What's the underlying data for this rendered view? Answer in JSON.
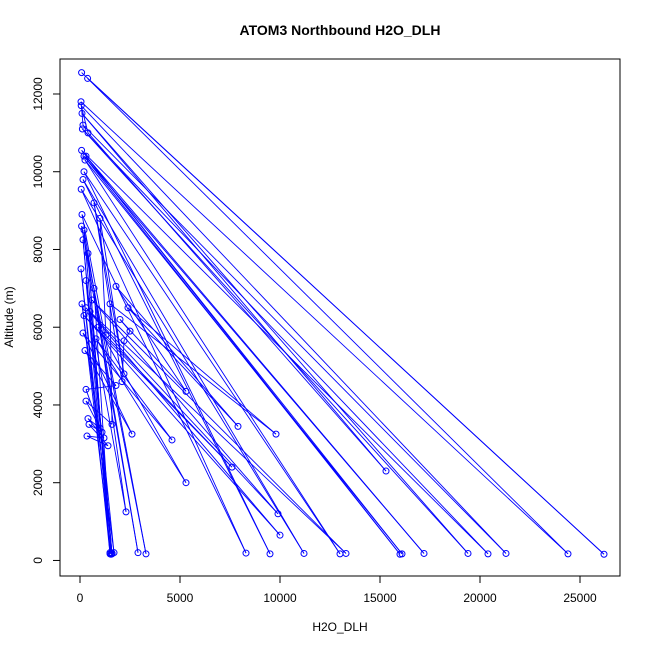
{
  "chart_data": {
    "type": "scatter",
    "title": "ATOM3 Northbound H2O_DLH",
    "xlabel": "H2O_DLH",
    "ylabel": "Altitude (m)",
    "xlim": [
      -1000,
      27000
    ],
    "ylim": [
      -400,
      12900
    ],
    "xticks": [
      0,
      5000,
      10000,
      15000,
      20000,
      25000
    ],
    "yticks": [
      0,
      2000,
      4000,
      6000,
      8000,
      10000,
      12000
    ],
    "grid": false,
    "legend": "none",
    "color": "#0000ff",
    "series": [
      {
        "points": [
          [
            80,
            12550
          ],
          [
            26200,
            160
          ],
          [
            380,
            12400
          ],
          [
            24400,
            170
          ],
          [
            50,
            11800
          ],
          [
            150,
            11200
          ],
          [
            21300,
            180
          ],
          [
            60,
            11700
          ],
          [
            400,
            11000
          ],
          [
            15300,
            2300
          ],
          [
            100,
            11500
          ],
          [
            19400,
            180
          ],
          [
            120,
            11100
          ],
          [
            20400,
            170
          ],
          [
            80,
            10550
          ],
          [
            16000,
            160
          ],
          [
            200,
            10400
          ],
          [
            17200,
            180
          ],
          [
            300,
            10400
          ],
          [
            16100,
            170
          ],
          [
            250,
            10300
          ],
          [
            13000,
            170
          ],
          [
            200,
            10000
          ],
          [
            9500,
            170
          ],
          [
            150,
            9800
          ],
          [
            11200,
            180
          ],
          [
            60,
            9550
          ],
          [
            8300,
            190
          ],
          [
            100,
            8900
          ],
          [
            3300,
            170
          ],
          [
            80,
            8600
          ],
          [
            2900,
            200
          ],
          [
            200,
            8500
          ],
          [
            1600,
            170
          ],
          [
            150,
            8250
          ],
          [
            1600,
            190
          ],
          [
            50,
            7500
          ],
          [
            1500,
            170
          ],
          [
            400,
            7900
          ],
          [
            1500,
            200
          ],
          [
            300,
            7200
          ],
          [
            1700,
            200
          ],
          [
            100,
            6600
          ],
          [
            1550,
            160
          ],
          [
            700,
            7000
          ],
          [
            2300,
            1250
          ],
          [
            500,
            6400
          ],
          [
            13300,
            180
          ],
          [
            600,
            6700
          ],
          [
            9900,
            1200
          ],
          [
            300,
            6500
          ],
          [
            10000,
            650
          ],
          [
            200,
            6300
          ],
          [
            7600,
            2400
          ],
          [
            900,
            6000
          ],
          [
            5300,
            2000
          ],
          [
            800,
            5700
          ],
          [
            4600,
            3100
          ],
          [
            150,
            5850
          ],
          [
            2600,
            3250
          ],
          [
            250,
            5400
          ],
          [
            1800,
            4500
          ],
          [
            300,
            4400
          ],
          [
            1000,
            3400
          ],
          [
            400,
            3650
          ],
          [
            1200,
            3150
          ],
          [
            350,
            3200
          ],
          [
            1400,
            2950
          ],
          [
            450,
            3500
          ],
          [
            1100,
            3300
          ],
          [
            300,
            4100
          ],
          [
            1600,
            3500
          ],
          [
            1500,
            6600
          ],
          [
            9800,
            3250
          ],
          [
            2400,
            6500
          ],
          [
            7900,
            3450
          ],
          [
            1800,
            7050
          ],
          [
            5300,
            4350
          ],
          [
            2000,
            6200
          ],
          [
            2500,
            5900
          ],
          [
            2200,
            5650
          ],
          [
            2100,
            4600
          ],
          [
            700,
            9200
          ],
          [
            2200,
            4800
          ],
          [
            1000,
            8800
          ],
          [
            1300,
            5800
          ]
        ]
      }
    ]
  }
}
